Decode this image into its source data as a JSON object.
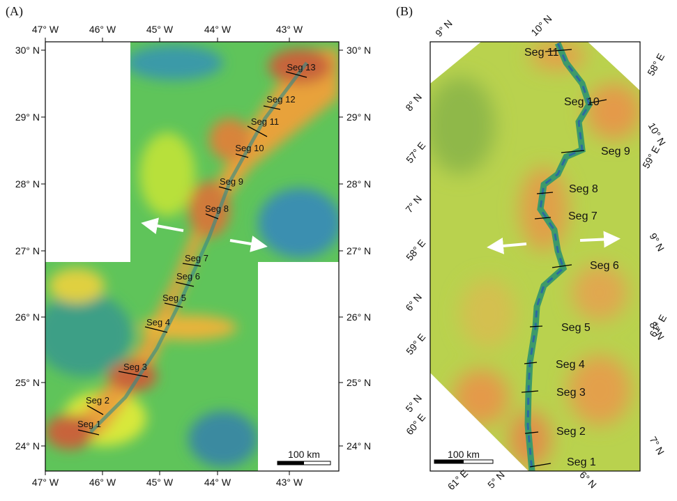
{
  "panels": [
    {
      "label": "(A)",
      "top_ticks": [
        "47° W",
        "46° W",
        "45° W",
        "44° W",
        "43° W"
      ],
      "bottom_ticks": [
        "47° W",
        "46° W",
        "45° W",
        "44° W",
        "43° W"
      ],
      "left_ticks": [
        "30° N",
        "29° N",
        "28° N",
        "27° N",
        "26° N",
        "25° N",
        "24° N"
      ],
      "right_ticks": [
        "30° N",
        "29° N",
        "28° N",
        "27° N",
        "26° N",
        "25° N",
        "24° N"
      ],
      "segments": [
        "Seg 1",
        "Seg 2",
        "Seg 3",
        "Seg 4",
        "Seg 5",
        "Seg 6",
        "Seg 7",
        "Seg 8",
        "Seg 9",
        "Seg 10",
        "Seg 11",
        "Seg 12",
        "Seg 13"
      ],
      "scale_bar": "100 km"
    },
    {
      "label": "(B)",
      "ticks": [
        "9° N",
        "10° N",
        "58° E",
        "8° N",
        "57° E",
        "10° N",
        "59° E",
        "7° N",
        "58° E",
        "9° N",
        "6° N",
        "59° E",
        "8° N",
        "61° E",
        "5° N",
        "60° E",
        "7° N",
        "61° E",
        "5° N",
        "6° N"
      ],
      "segments": [
        "Seg 1",
        "Seg 2",
        "Seg 3",
        "Seg 4",
        "Seg 5",
        "Seg 6",
        "Seg 7",
        "Seg 8",
        "Seg 9",
        "Seg 10",
        "Seg 11"
      ],
      "scale_bar": "100 km"
    }
  ]
}
